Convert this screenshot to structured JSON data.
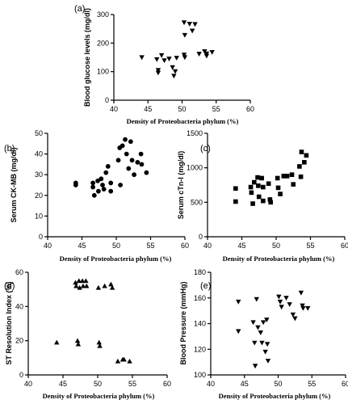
{
  "figure": {
    "background_color": "#ffffff",
    "marker_color": "#000000"
  },
  "chart_data": [
    {
      "panel_letter": "(a)",
      "type": "scatter",
      "marker": "triangle-down",
      "xlabel": "Density of Proteobacteria phylum (%)",
      "ylabel": "Blood glucose levels (mg/dl)",
      "xlim": [
        40,
        60
      ],
      "ylim": [
        0,
        300
      ],
      "x_ticks": [
        40,
        45,
        50,
        55,
        60
      ],
      "y_ticks": [
        0,
        100,
        200,
        300
      ],
      "grid": false,
      "points": [
        {
          "x": 44.1,
          "y": 150
        },
        {
          "x": 46.3,
          "y": 143
        },
        {
          "x": 46.5,
          "y": 105
        },
        {
          "x": 46.5,
          "y": 96
        },
        {
          "x": 47.0,
          "y": 157
        },
        {
          "x": 47.4,
          "y": 139
        },
        {
          "x": 48.1,
          "y": 145
        },
        {
          "x": 48.6,
          "y": 115
        },
        {
          "x": 48.8,
          "y": 85
        },
        {
          "x": 49.0,
          "y": 101
        },
        {
          "x": 49.2,
          "y": 148
        },
        {
          "x": 50.3,
          "y": 272
        },
        {
          "x": 50.4,
          "y": 228
        },
        {
          "x": 50.3,
          "y": 159
        },
        {
          "x": 50.4,
          "y": 150
        },
        {
          "x": 51.1,
          "y": 267
        },
        {
          "x": 51.5,
          "y": 243
        },
        {
          "x": 51.9,
          "y": 266
        },
        {
          "x": 52.5,
          "y": 162
        },
        {
          "x": 53.3,
          "y": 171
        },
        {
          "x": 53.6,
          "y": 163
        },
        {
          "x": 53.6,
          "y": 155
        },
        {
          "x": 54.4,
          "y": 168
        }
      ]
    },
    {
      "panel_letter": "(b)",
      "type": "scatter",
      "marker": "circle",
      "xlabel": "Density of Proteobacteria phylum (%)",
      "ylabel": "Serum CK-MB (mg/dl)",
      "xlim": [
        40,
        60
      ],
      "ylim": [
        0,
        50
      ],
      "x_ticks": [
        40,
        45,
        50,
        55,
        60
      ],
      "y_ticks": [
        0,
        10,
        20,
        30,
        40,
        50
      ],
      "grid": false,
      "points": [
        {
          "x": 44.1,
          "y": 26
        },
        {
          "x": 44.1,
          "y": 25
        },
        {
          "x": 46.6,
          "y": 26
        },
        {
          "x": 46.6,
          "y": 24
        },
        {
          "x": 46.8,
          "y": 20
        },
        {
          "x": 47.3,
          "y": 27
        },
        {
          "x": 47.4,
          "y": 22
        },
        {
          "x": 47.8,
          "y": 28
        },
        {
          "x": 48.0,
          "y": 25
        },
        {
          "x": 48.2,
          "y": 23
        },
        {
          "x": 48.5,
          "y": 31
        },
        {
          "x": 48.8,
          "y": 34
        },
        {
          "x": 49.2,
          "y": 26
        },
        {
          "x": 49.2,
          "y": 22
        },
        {
          "x": 50.3,
          "y": 37
        },
        {
          "x": 50.5,
          "y": 43
        },
        {
          "x": 50.6,
          "y": 25
        },
        {
          "x": 50.9,
          "y": 44
        },
        {
          "x": 51.3,
          "y": 47
        },
        {
          "x": 51.5,
          "y": 40
        },
        {
          "x": 51.8,
          "y": 33
        },
        {
          "x": 52.1,
          "y": 46
        },
        {
          "x": 52.3,
          "y": 37
        },
        {
          "x": 52.6,
          "y": 30
        },
        {
          "x": 53.1,
          "y": 36
        },
        {
          "x": 53.6,
          "y": 40
        },
        {
          "x": 53.7,
          "y": 35
        },
        {
          "x": 54.4,
          "y": 31
        }
      ]
    },
    {
      "panel_letter": "(c)",
      "type": "scatter",
      "marker": "square",
      "xlabel": "Density of Proteobacteria phylum (%)",
      "ylabel": "Serum cTn-I (mg/dl)",
      "xlim": [
        40,
        60
      ],
      "ylim": [
        0,
        1500
      ],
      "x_ticks": [
        40,
        45,
        50,
        55,
        60
      ],
      "y_ticks": [
        0,
        500,
        1000,
        1500
      ],
      "grid": false,
      "points": [
        {
          "x": 44.1,
          "y": 700
        },
        {
          "x": 44.1,
          "y": 510
        },
        {
          "x": 46.3,
          "y": 720
        },
        {
          "x": 46.4,
          "y": 640
        },
        {
          "x": 46.6,
          "y": 480
        },
        {
          "x": 46.8,
          "y": 790
        },
        {
          "x": 47.3,
          "y": 860
        },
        {
          "x": 47.4,
          "y": 740
        },
        {
          "x": 47.5,
          "y": 580
        },
        {
          "x": 47.9,
          "y": 850
        },
        {
          "x": 48.1,
          "y": 720
        },
        {
          "x": 48.1,
          "y": 520
        },
        {
          "x": 48.9,
          "y": 770
        },
        {
          "x": 49.1,
          "y": 540
        },
        {
          "x": 49.2,
          "y": 500
        },
        {
          "x": 50.2,
          "y": 850
        },
        {
          "x": 50.3,
          "y": 710
        },
        {
          "x": 50.6,
          "y": 620
        },
        {
          "x": 51.1,
          "y": 880
        },
        {
          "x": 51.6,
          "y": 880
        },
        {
          "x": 52.3,
          "y": 900
        },
        {
          "x": 52.5,
          "y": 760
        },
        {
          "x": 53.4,
          "y": 1020
        },
        {
          "x": 53.6,
          "y": 870
        },
        {
          "x": 53.7,
          "y": 1230
        },
        {
          "x": 54.1,
          "y": 1080
        },
        {
          "x": 54.4,
          "y": 1180
        }
      ]
    },
    {
      "panel_letter": "(d)",
      "type": "scatter",
      "marker": "triangle-up",
      "xlabel": "Density of Proteobacteria phylum (%)",
      "ylabel": "ST Resolution Index (%)",
      "xlim": [
        40,
        60
      ],
      "ylim": [
        0,
        60
      ],
      "x_ticks": [
        40,
        45,
        50,
        55,
        60
      ],
      "y_ticks": [
        0,
        20,
        40,
        60
      ],
      "grid": false,
      "points": [
        {
          "x": 44.1,
          "y": 19
        },
        {
          "x": 46.8,
          "y": 54
        },
        {
          "x": 46.9,
          "y": 52
        },
        {
          "x": 47.1,
          "y": 20
        },
        {
          "x": 47.2,
          "y": 18
        },
        {
          "x": 47.3,
          "y": 55
        },
        {
          "x": 47.4,
          "y": 51
        },
        {
          "x": 47.8,
          "y": 55
        },
        {
          "x": 47.9,
          "y": 52
        },
        {
          "x": 48.3,
          "y": 55
        },
        {
          "x": 48.4,
          "y": 52
        },
        {
          "x": 50.1,
          "y": 51
        },
        {
          "x": 50.2,
          "y": 19
        },
        {
          "x": 50.3,
          "y": 17
        },
        {
          "x": 51.0,
          "y": 52
        },
        {
          "x": 51.9,
          "y": 53
        },
        {
          "x": 52.1,
          "y": 51
        },
        {
          "x": 52.9,
          "y": 8
        },
        {
          "x": 53.6,
          "y": 9
        },
        {
          "x": 53.8,
          "y": 9
        },
        {
          "x": 54.6,
          "y": 8
        }
      ]
    },
    {
      "panel_letter": "(e)",
      "type": "scatter",
      "marker": "triangle-down",
      "xlabel": "Density of Proteobacteria phylum (%)",
      "ylabel": "Blood Pressure (mmHg)",
      "xlim": [
        40,
        60
      ],
      "ylim": [
        100,
        180
      ],
      "x_ticks": [
        40,
        45,
        50,
        55,
        60
      ],
      "y_ticks": [
        100,
        120,
        140,
        160,
        180
      ],
      "grid": false,
      "points": [
        {
          "x": 44.1,
          "y": 157
        },
        {
          "x": 44.1,
          "y": 134
        },
        {
          "x": 46.3,
          "y": 141
        },
        {
          "x": 46.5,
          "y": 125
        },
        {
          "x": 46.6,
          "y": 107
        },
        {
          "x": 46.8,
          "y": 159
        },
        {
          "x": 47.0,
          "y": 137
        },
        {
          "x": 47.4,
          "y": 133
        },
        {
          "x": 47.6,
          "y": 125
        },
        {
          "x": 47.8,
          "y": 141
        },
        {
          "x": 48.1,
          "y": 118
        },
        {
          "x": 48.3,
          "y": 143
        },
        {
          "x": 48.4,
          "y": 124
        },
        {
          "x": 48.5,
          "y": 111
        },
        {
          "x": 50.1,
          "y": 161
        },
        {
          "x": 50.3,
          "y": 157
        },
        {
          "x": 50.5,
          "y": 153
        },
        {
          "x": 51.2,
          "y": 160
        },
        {
          "x": 51.7,
          "y": 155
        },
        {
          "x": 52.2,
          "y": 147
        },
        {
          "x": 52.5,
          "y": 144
        },
        {
          "x": 53.4,
          "y": 164
        },
        {
          "x": 53.6,
          "y": 154
        },
        {
          "x": 53.7,
          "y": 152
        },
        {
          "x": 54.4,
          "y": 152
        }
      ]
    }
  ]
}
